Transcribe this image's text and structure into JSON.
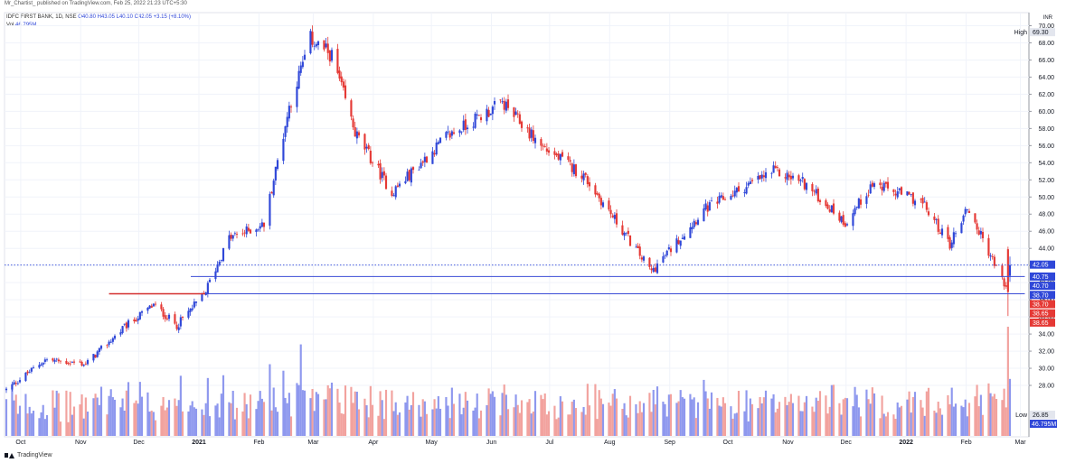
{
  "header": {
    "published": "Mr_Chartist_ published on TradingView.com, Feb 25, 2022 21:23 UTC+5:30",
    "symbol": "IDFC FIRST BANK, 1D, NSE",
    "ohlc": "O40.80 H43.05 L40.10 C42.05 +3.15 (+8.10%)",
    "volume_label": "Vol",
    "volume_value": "46.795M"
  },
  "footer": {
    "brand": "TradingView"
  },
  "colors": {
    "up": "#2f47d8",
    "down": "#e53935",
    "vol_up": "#8e98ee",
    "vol_down": "#f2a29e",
    "support_line": "#3b4cd6",
    "resistance_line": "#d32f2f",
    "grid": "#f0f3fa"
  },
  "chart_data": {
    "type": "candlestick",
    "currency": "INR",
    "ylim": [
      26,
      71
    ],
    "y_ticks": [
      "70.00",
      "68.00",
      "66.00",
      "64.00",
      "62.00",
      "60.00",
      "58.00",
      "56.00",
      "54.00",
      "52.00",
      "50.00",
      "48.00",
      "46.00",
      "44.00",
      "42.00",
      "40.00",
      "38.00",
      "36.00",
      "34.00",
      "32.00",
      "30.00",
      "28.00"
    ],
    "x_ticks": [
      "Oct",
      "Nov",
      "Dec",
      "2021",
      "Feb",
      "Mar",
      "Apr",
      "May",
      "Jun",
      "Jul",
      "Aug",
      "Sep",
      "Oct",
      "Nov",
      "Dec",
      "2022",
      "Feb",
      "Mar"
    ],
    "period": {
      "start": "2020-10",
      "end": "2022-02-25"
    },
    "anchors": [
      {
        "date": "2020-09-25",
        "close": 27.5
      },
      {
        "date": "2020-10-15",
        "close": 31.0
      },
      {
        "date": "2020-11-05",
        "close": 30.5
      },
      {
        "date": "2020-11-25",
        "close": 34.8
      },
      {
        "date": "2020-12-10",
        "close": 37.4
      },
      {
        "date": "2020-12-22",
        "close": 35.0
      },
      {
        "date": "2021-01-05",
        "close": 38.6
      },
      {
        "date": "2021-01-18",
        "close": 45.2
      },
      {
        "date": "2021-02-05",
        "close": 46.8
      },
      {
        "date": "2021-02-18",
        "close": 60.5
      },
      {
        "date": "2021-03-01",
        "close": 68.5
      },
      {
        "date": "2021-03-12",
        "close": 66.5
      },
      {
        "date": "2021-03-24",
        "close": 57.5
      },
      {
        "date": "2021-04-12",
        "close": 50.5
      },
      {
        "date": "2021-05-10",
        "close": 57.0
      },
      {
        "date": "2021-06-08",
        "close": 61.0
      },
      {
        "date": "2021-06-28",
        "close": 56.0
      },
      {
        "date": "2021-07-20",
        "close": 52.5
      },
      {
        "date": "2021-08-24",
        "close": 41.3
      },
      {
        "date": "2021-09-20",
        "close": 48.5
      },
      {
        "date": "2021-10-26",
        "close": 53.0
      },
      {
        "date": "2021-11-10",
        "close": 51.8
      },
      {
        "date": "2021-12-02",
        "close": 47.0
      },
      {
        "date": "2021-12-16",
        "close": 51.5
      },
      {
        "date": "2022-01-10",
        "close": 49.5
      },
      {
        "date": "2022-01-25",
        "close": 44.5
      },
      {
        "date": "2022-02-03",
        "close": 48.8
      },
      {
        "date": "2022-02-24",
        "close": 38.9
      },
      {
        "date": "2022-02-25",
        "close": 42.05
      }
    ],
    "high": {
      "label": "High",
      "value": 69.3
    },
    "low": {
      "label": "Low",
      "value": 26.85
    },
    "price_labels": [
      {
        "value": "42.05",
        "color": "#2f47d8",
        "at": 42.05
      },
      {
        "value": "40.75",
        "color": "#2f47d8",
        "at": 40.75
      },
      {
        "value": "40.70",
        "color": "#2f47d8",
        "at": 40.7
      },
      {
        "value": "38.70",
        "color": "#2f47d8",
        "at": 38.7
      },
      {
        "value": "38.70",
        "color": "#e53935",
        "at": 38.7
      },
      {
        "value": "38.65",
        "color": "#e53935",
        "at": 38.65
      },
      {
        "value": "38.65",
        "color": "#e53935",
        "at": 38.65
      }
    ],
    "last_volume_label": "46.795M",
    "horizontal_lines": [
      {
        "name": "support",
        "value": 40.72,
        "from": "2021-01-01",
        "to": "2022-02-28",
        "color": "#3b4cd6"
      },
      {
        "name": "mid",
        "value": 38.7,
        "from": "2021-01-01",
        "to": "2022-02-28",
        "color": "#3b4cd6"
      },
      {
        "name": "resistance",
        "value": 38.7,
        "from": "2020-11-17",
        "to": "2021-01-01",
        "color": "#d32f2f"
      }
    ],
    "last_price_dotted": 42.05
  }
}
